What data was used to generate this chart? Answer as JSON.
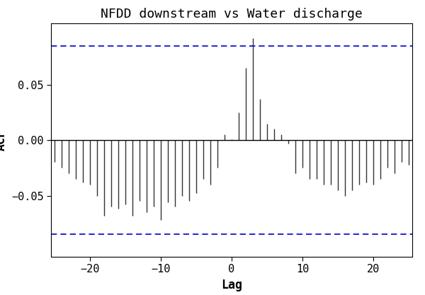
{
  "title": "NFDD downstream vs Water discharge",
  "xlabel": "Lag",
  "ylabel": "ACF",
  "ylim": [
    -0.105,
    0.105
  ],
  "xlim": [
    -25.5,
    25.5
  ],
  "ci": 0.085,
  "ci_color": "#0000CC",
  "bar_color": "#333333",
  "title_fontsize": 13,
  "label_fontsize": 12,
  "tick_fontsize": 11,
  "background_color": "#ffffff",
  "yticks": [
    -0.05,
    0.0,
    0.05
  ],
  "xticks": [
    -20,
    -10,
    0,
    10,
    20
  ],
  "acf_values": {
    "-25": -0.02,
    "-24": -0.025,
    "-23": -0.03,
    "-22": -0.035,
    "-21": -0.038,
    "-20": -0.04,
    "-19": -0.05,
    "-18": -0.068,
    "-17": -0.06,
    "-16": -0.062,
    "-15": -0.058,
    "-14": -0.068,
    "-13": -0.055,
    "-12": -0.065,
    "-11": -0.06,
    "-10": -0.072,
    "-9": -0.056,
    "-8": -0.06,
    "-7": -0.05,
    "-6": -0.055,
    "-5": -0.048,
    "-4": -0.035,
    "-3": -0.04,
    "-2": -0.025,
    "-1": 0.005,
    "0": 0.001,
    "1": 0.025,
    "2": 0.065,
    "3": 0.092,
    "4": 0.037,
    "5": 0.015,
    "6": 0.01,
    "7": 0.005,
    "8": -0.003,
    "9": -0.03,
    "10": -0.025,
    "11": -0.035,
    "12": -0.035,
    "13": -0.04,
    "14": -0.04,
    "15": -0.045,
    "16": -0.05,
    "17": -0.045,
    "18": -0.04,
    "19": -0.038,
    "20": -0.04,
    "21": -0.035,
    "22": -0.025,
    "23": -0.03,
    "24": -0.02,
    "25": -0.022
  }
}
